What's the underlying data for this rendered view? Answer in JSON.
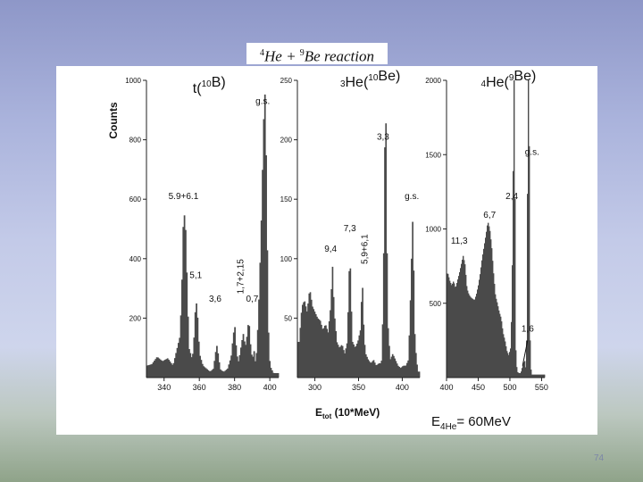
{
  "slide": {
    "title_sup_he": "4",
    "title_he": "He + ",
    "title_sup_be": "9",
    "title_rest": "Be reaction",
    "energy_label_prefix": "E",
    "energy_label_sub": "4He",
    "energy_label_value": "= 60MeV",
    "page_number": "74"
  },
  "colors": {
    "bars": "#4a4a4a",
    "axis": "#222222"
  },
  "chart_data": [
    {
      "type": "bar",
      "title": "t(10B)",
      "ylabel": "Counts",
      "xlabel": "Etot (10*MeV)",
      "xlim": [
        330,
        405
      ],
      "ylim": [
        0,
        1000
      ],
      "xticks": [
        340,
        360,
        380,
        400
      ],
      "yticks": [
        200,
        400,
        600,
        800,
        1000
      ],
      "annotations": [
        {
          "text": "g.s.",
          "x": 396,
          "y": 920
        },
        {
          "text": "5.9+6.1",
          "x": 351,
          "y": 600
        },
        {
          "text": "5,1",
          "x": 358,
          "y": 335
        },
        {
          "text": "3,6",
          "x": 369,
          "y": 255
        },
        {
          "text": "1,7+2,15",
          "x": 385,
          "y": 340,
          "rotate": true
        },
        {
          "text": "0,7",
          "x": 390,
          "y": 255
        }
      ],
      "profile": [
        [
          330,
          40
        ],
        [
          333,
          45
        ],
        [
          336,
          70
        ],
        [
          339,
          55
        ],
        [
          342,
          65
        ],
        [
          345,
          40
        ],
        [
          347,
          90
        ],
        [
          349,
          140
        ],
        [
          350,
          300
        ],
        [
          351,
          560
        ],
        [
          352,
          530
        ],
        [
          353,
          320
        ],
        [
          354,
          100
        ],
        [
          356,
          60
        ],
        [
          357,
          140
        ],
        [
          358,
          270
        ],
        [
          359,
          200
        ],
        [
          360,
          80
        ],
        [
          362,
          40
        ],
        [
          364,
          30
        ],
        [
          366,
          20
        ],
        [
          368,
          30
        ],
        [
          369,
          80
        ],
        [
          370,
          110
        ],
        [
          371,
          60
        ],
        [
          372,
          25
        ],
        [
          374,
          20
        ],
        [
          376,
          30
        ],
        [
          378,
          70
        ],
        [
          379,
          130
        ],
        [
          380,
          180
        ],
        [
          381,
          90
        ],
        [
          382,
          50
        ],
        [
          383,
          80
        ],
        [
          384,
          120
        ],
        [
          385,
          150
        ],
        [
          386,
          100
        ],
        [
          387,
          140
        ],
        [
          388,
          200
        ],
        [
          389,
          110
        ],
        [
          390,
          60
        ],
        [
          391,
          90
        ],
        [
          392,
          40
        ],
        [
          393,
          150
        ],
        [
          394,
          300
        ],
        [
          395,
          500
        ],
        [
          396,
          750
        ],
        [
          397,
          1000
        ],
        [
          398,
          700
        ],
        [
          399,
          180
        ],
        [
          400,
          40
        ],
        [
          402,
          15
        ]
      ]
    },
    {
      "type": "bar",
      "title": "3He(10Be)",
      "xlim": [
        280,
        420
      ],
      "ylim": [
        0,
        250
      ],
      "xticks": [
        300,
        350,
        400
      ],
      "yticks": [
        50,
        100,
        150,
        200,
        250
      ],
      "annotations": [
        {
          "text": "3,3",
          "x": 378,
          "y": 200
        },
        {
          "text": "g.s.",
          "x": 411,
          "y": 150
        },
        {
          "text": "7,3",
          "x": 340,
          "y": 123
        },
        {
          "text": "9,4",
          "x": 318,
          "y": 106
        },
        {
          "text": "5,9+6,1",
          "x": 360,
          "y": 108,
          "rotate": true
        }
      ],
      "profile": [
        [
          282,
          30
        ],
        [
          285,
          60
        ],
        [
          288,
          65
        ],
        [
          291,
          55
        ],
        [
          294,
          75
        ],
        [
          297,
          60
        ],
        [
          300,
          55
        ],
        [
          303,
          50
        ],
        [
          306,
          48
        ],
        [
          309,
          40
        ],
        [
          312,
          45
        ],
        [
          315,
          38
        ],
        [
          318,
          60
        ],
        [
          320,
          95
        ],
        [
          322,
          55
        ],
        [
          325,
          30
        ],
        [
          328,
          25
        ],
        [
          331,
          28
        ],
        [
          334,
          20
        ],
        [
          337,
          30
        ],
        [
          339,
          85
        ],
        [
          340,
          110
        ],
        [
          341,
          70
        ],
        [
          343,
          30
        ],
        [
          346,
          25
        ],
        [
          349,
          30
        ],
        [
          352,
          40
        ],
        [
          354,
          80
        ],
        [
          355,
          70
        ],
        [
          356,
          35
        ],
        [
          358,
          20
        ],
        [
          361,
          15
        ],
        [
          364,
          12
        ],
        [
          367,
          15
        ],
        [
          370,
          10
        ],
        [
          373,
          12
        ],
        [
          376,
          12
        ],
        [
          378,
          60
        ],
        [
          380,
          200
        ],
        [
          381,
          228
        ],
        [
          382,
          150
        ],
        [
          383,
          50
        ],
        [
          386,
          15
        ],
        [
          389,
          20
        ],
        [
          392,
          15
        ],
        [
          395,
          10
        ],
        [
          398,
          8
        ],
        [
          401,
          10
        ],
        [
          404,
          10
        ],
        [
          407,
          15
        ],
        [
          409,
          60
        ],
        [
          411,
          115
        ],
        [
          412,
          137
        ],
        [
          413,
          90
        ],
        [
          414,
          40
        ],
        [
          416,
          15
        ],
        [
          418,
          5
        ]
      ]
    },
    {
      "type": "bar",
      "title": "4He(9Be)",
      "xlim": [
        400,
        555
      ],
      "ylim": [
        0,
        2000
      ],
      "xticks": [
        400,
        450,
        500,
        550
      ],
      "yticks": [
        500,
        1000,
        1500,
        2000
      ],
      "annotations": [
        {
          "text": "g.s.",
          "x": 535,
          "y": 1500
        },
        {
          "text": "2,4",
          "x": 503,
          "y": 1200
        },
        {
          "text": "6,7",
          "x": 468,
          "y": 1075
        },
        {
          "text": "11,3",
          "x": 420,
          "y": 900
        },
        {
          "text": "1,6",
          "x": 528,
          "y": 310
        }
      ],
      "profile": [
        [
          402,
          700
        ],
        [
          405,
          650
        ],
        [
          408,
          620
        ],
        [
          411,
          650
        ],
        [
          414,
          600
        ],
        [
          417,
          650
        ],
        [
          420,
          700
        ],
        [
          423,
          760
        ],
        [
          426,
          820
        ],
        [
          429,
          760
        ],
        [
          432,
          600
        ],
        [
          435,
          560
        ],
        [
          438,
          540
        ],
        [
          441,
          530
        ],
        [
          444,
          520
        ],
        [
          447,
          560
        ],
        [
          450,
          620
        ],
        [
          453,
          700
        ],
        [
          456,
          800
        ],
        [
          459,
          880
        ],
        [
          462,
          960
        ],
        [
          465,
          1050
        ],
        [
          468,
          1000
        ],
        [
          471,
          880
        ],
        [
          474,
          700
        ],
        [
          477,
          550
        ],
        [
          480,
          500
        ],
        [
          483,
          440
        ],
        [
          486,
          400
        ],
        [
          489,
          300
        ],
        [
          492,
          250
        ],
        [
          495,
          180
        ],
        [
          498,
          150
        ],
        [
          501,
          200
        ],
        [
          503,
          500
        ],
        [
          505,
          1400
        ],
        [
          506,
          2000
        ],
        [
          507,
          2000
        ],
        [
          508,
          1000
        ],
        [
          509,
          200
        ],
        [
          511,
          40
        ],
        [
          514,
          30
        ],
        [
          517,
          30
        ],
        [
          520,
          80
        ],
        [
          523,
          120
        ],
        [
          525,
          60
        ],
        [
          527,
          400
        ],
        [
          528,
          2000
        ],
        [
          529,
          2000
        ],
        [
          530,
          2000
        ],
        [
          531,
          700
        ],
        [
          532,
          100
        ],
        [
          534,
          20
        ]
      ]
    }
  ]
}
